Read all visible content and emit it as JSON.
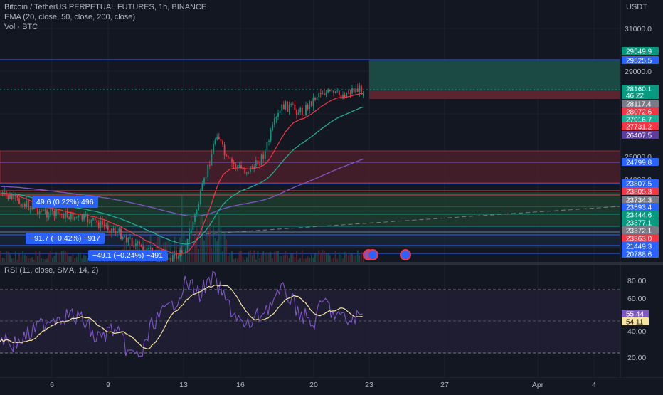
{
  "header": {
    "title": "Bitcoin / TetherUS PERPETUAL FUTURES, 1h, BINANCE",
    "ema": "EMA (20, close, 50, close, 200, close)",
    "vol": "Vol · BTC"
  },
  "price_axis": {
    "currency": "USDT",
    "ticks": [
      "31000.0",
      "29000.0",
      "25000.0",
      "24000.0"
    ]
  },
  "price_labels": [
    {
      "text": "29549.9",
      "bg": "#089981",
      "fg": "#ffffff"
    },
    {
      "text": "29525.5",
      "bg": "#2962ff",
      "fg": "#ffffff"
    },
    {
      "text": "28160.1",
      "bg": "#089981",
      "fg": "#ffffff"
    },
    {
      "text": "46:22",
      "bg": "#089981",
      "fg": "#ffffff"
    },
    {
      "text": "28117.4",
      "bg": "#787b86",
      "fg": "#ffffff"
    },
    {
      "text": "28072.6",
      "bg": "#f23645",
      "fg": "#ffffff"
    },
    {
      "text": "27916.7",
      "bg": "#22ab94",
      "fg": "#ffffff"
    },
    {
      "text": "27731.2",
      "bg": "#f23645",
      "fg": "#ffffff"
    },
    {
      "text": "26407.5",
      "bg": "#5b3e9c",
      "fg": "#ffffff"
    },
    {
      "text": "24799.8",
      "bg": "#2962ff",
      "fg": "#ffffff"
    },
    {
      "text": "23807.5",
      "bg": "#2962ff",
      "fg": "#ffffff"
    },
    {
      "text": "23805.3",
      "bg": "#f23645",
      "fg": "#ffffff"
    },
    {
      "text": "23734.3",
      "bg": "#787b86",
      "fg": "#ffffff"
    },
    {
      "text": "23593.4",
      "bg": "#2962ff",
      "fg": "#ffffff"
    },
    {
      "text": "23444.6",
      "bg": "#089981",
      "fg": "#ffffff"
    },
    {
      "text": "23377.1",
      "bg": "#089981",
      "fg": "#ffffff"
    },
    {
      "text": "23372.1",
      "bg": "#787b86",
      "fg": "#ffffff"
    },
    {
      "text": "23363.0",
      "bg": "#f23645",
      "fg": "#ffffff"
    },
    {
      "text": "21449.3",
      "bg": "#2962ff",
      "fg": "#ffffff"
    },
    {
      "text": "20788.6",
      "bg": "#2962ff",
      "fg": "#ffffff"
    }
  ],
  "measure_labels": [
    "49.6 (0.22%) 496",
    "−91.7 (−0.42%) −917",
    "−49.1 (−0.24%) −491"
  ],
  "rsi": {
    "title": "RSI (11, close, SMA, 14, 2)",
    "ticks": [
      "80.00",
      "60.00",
      "40.00",
      "20.00"
    ],
    "labels": [
      {
        "text": "55.44",
        "bg": "#7e57c2",
        "fg": "#ffffff"
      },
      {
        "text": "54.11",
        "bg": "#f7e3a1",
        "fg": "#131722"
      }
    ]
  },
  "time_axis": [
    "6",
    "9",
    "13",
    "16",
    "20",
    "23",
    "27",
    "Apr",
    "4"
  ],
  "colors": {
    "background": "#131722",
    "up": "#089981",
    "down": "#f23645",
    "ema20": "#f23645",
    "ema50": "#22ab94",
    "ema200": "#7e57c2",
    "rsi_line": "#7e57c2",
    "rsi_sma": "#f7e3a1"
  }
}
